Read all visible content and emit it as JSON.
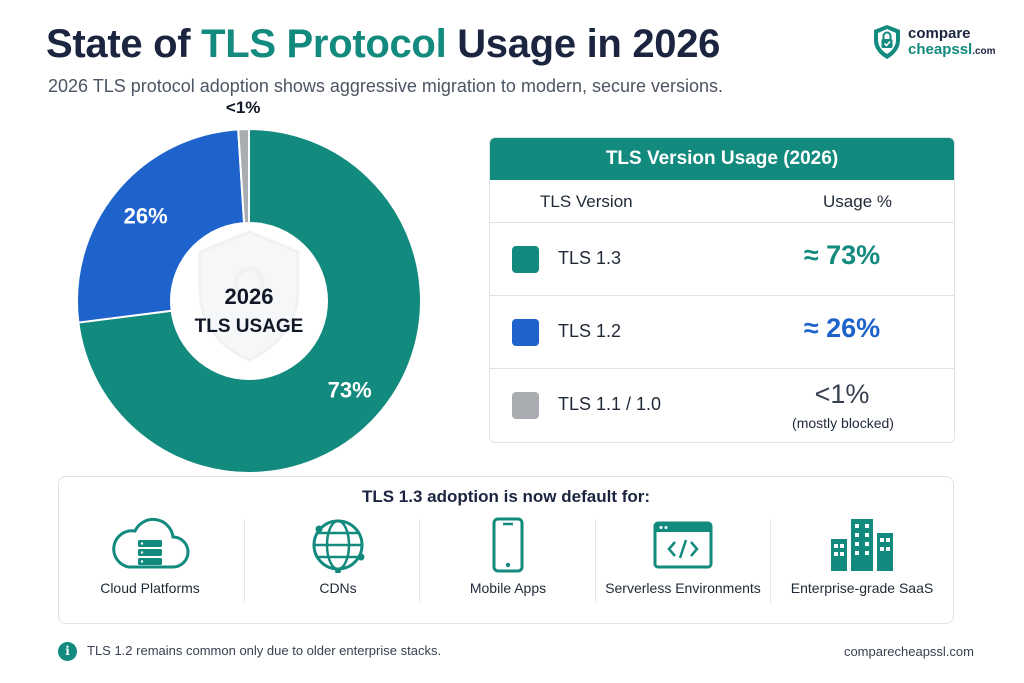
{
  "header": {
    "title_pre": "State of ",
    "title_hl": "TLS Protocol",
    "title_post": " Usage in 2026",
    "subtitle": "2026 TLS protocol adoption shows aggressive migration to modern, secure versions."
  },
  "logo": {
    "line1": "compare",
    "line2": "cheapssl",
    "line2_suffix": ".com"
  },
  "donut": {
    "center_line1": "2026",
    "center_line2": "TLS USAGE"
  },
  "chart_data": {
    "type": "pie",
    "categories": [
      "TLS 1.3",
      "TLS 1.2",
      "TLS 1.1 / 1.0"
    ],
    "values": [
      73,
      26,
      1
    ],
    "labels": [
      "73%",
      "26%",
      "<1%"
    ],
    "colors": [
      "#138a7e",
      "#1e63cc",
      "#a9adb2"
    ]
  },
  "table": {
    "title": "TLS Version Usage (2026)",
    "col_version": "TLS Version",
    "col_usage": "Usage %",
    "rows": [
      {
        "version": "TLS 1.3",
        "usage": "≈ 73%",
        "color": "#138a7e",
        "value_color": "#138a7e",
        "note": ""
      },
      {
        "version": "TLS 1.2",
        "usage": "≈ 26%",
        "color": "#1e63cc",
        "value_color": "#1e63cc",
        "note": ""
      },
      {
        "version": "TLS 1.1 / 1.0",
        "usage": "<1%",
        "color": "#a9adb2",
        "value_color": "#374151",
        "note": "(mostly blocked)"
      }
    ]
  },
  "adoption": {
    "title": "TLS 1.3  adoption is now default for:",
    "items": [
      {
        "label": "Cloud Platforms",
        "icon": "cloud-server-icon"
      },
      {
        "label": "CDNs",
        "icon": "globe-network-icon"
      },
      {
        "label": "Mobile Apps",
        "icon": "smartphone-icon"
      },
      {
        "label": "Serverless Environments",
        "icon": "code-window-icon"
      },
      {
        "label": "Enterprise-grade SaaS",
        "icon": "buildings-icon"
      }
    ]
  },
  "footer": {
    "info_icon": "i",
    "note": "TLS 1.2 remains common only due to older enterprise stacks.",
    "site": "comparecheapssl.com"
  },
  "colors": {
    "accent": "#138a7e",
    "blue": "#1e63cc",
    "gray": "#a9adb2",
    "navy": "#1b2540"
  }
}
